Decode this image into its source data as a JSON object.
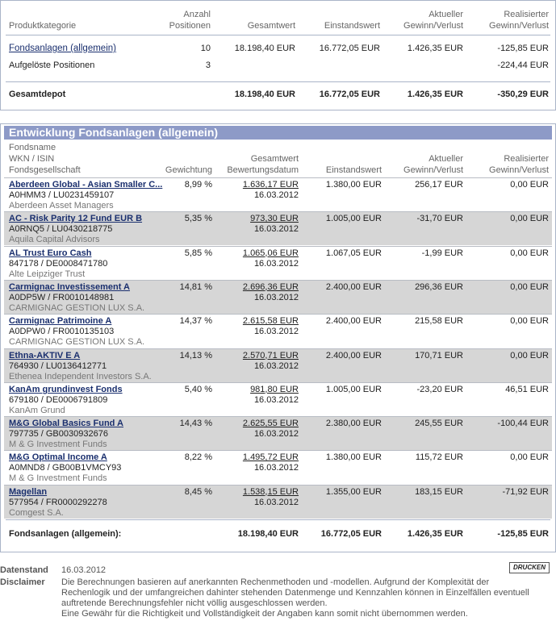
{
  "summary": {
    "headers": {
      "category": "Produktkategorie",
      "positions_1": "Anzahl",
      "positions_2": "Positionen",
      "total": "Gesamtwert",
      "cost": "Einstandswert",
      "current_1": "Aktueller",
      "current_2": "Gewinn/Verlust",
      "realized_1": "Realisierter",
      "realized_2": "Gewinn/Verlust"
    },
    "rows": [
      {
        "category": "Fondsanlagen (allgemein)",
        "positions": "10",
        "total": "18.198,40 EUR",
        "cost": "16.772,05 EUR",
        "current": "1.426,35 EUR",
        "realized": "-125,85 EUR"
      },
      {
        "category": "Aufgelöste Positionen",
        "positions": "3",
        "total": "",
        "cost": "",
        "current": "",
        "realized": "-224,44 EUR"
      }
    ],
    "total_row": {
      "category": "Gesamtdepot",
      "total": "18.198,40 EUR",
      "cost": "16.772,05 EUR",
      "current": "1.426,35 EUR",
      "realized": "-350,29 EUR"
    }
  },
  "detail": {
    "title": "Entwicklung Fondsanlagen (allgemein)",
    "headers": {
      "name_1": "Fondsname",
      "name_2": "WKN / ISIN",
      "name_3": "Fondsgesellschaft",
      "weight": "Gewichtung",
      "total_1": "Gesamtwert",
      "total_2": "Bewertungsdatum",
      "cost": "Einstandswert",
      "current_1": "Aktueller",
      "current_2": "Gewinn/Verlust",
      "realized_1": "Realisierter",
      "realized_2": "Gewinn/Verlust"
    },
    "funds": [
      {
        "name": "Aberdeen Global - Asian Smaller C...",
        "ids": "A0HMM3 / LU0231459107",
        "company": "Aberdeen Asset Managers",
        "weight": "8,99 %",
        "value": "1.636,17 EUR",
        "date": "16.03.2012",
        "cost": "1.380,00 EUR",
        "current": "256,17 EUR",
        "realized": "0,00 EUR"
      },
      {
        "name": "AC - Risk Parity 12 Fund EUR B",
        "ids": "A0RNQ5 / LU0430218775",
        "company": "Aquila Capital Advisors",
        "weight": "5,35 %",
        "value": "973,30 EUR",
        "date": "16.03.2012",
        "cost": "1.005,00 EUR",
        "current": "-31,70 EUR",
        "realized": "0,00 EUR"
      },
      {
        "name": "AL Trust Euro Cash",
        "ids": "847178 / DE0008471780",
        "company": "Alte Leipziger Trust",
        "weight": "5,85 %",
        "value": "1.065,06 EUR",
        "date": "16.03.2012",
        "cost": "1.067,05 EUR",
        "current": "-1,99 EUR",
        "realized": "0,00 EUR"
      },
      {
        "name": "Carmignac Investissement A",
        "ids": "A0DP5W / FR0010148981",
        "company": "CARMIGNAC GESTION LUX S.A.",
        "weight": "14,81 %",
        "value": "2.696,36 EUR",
        "date": "16.03.2012",
        "cost": "2.400,00 EUR",
        "current": "296,36 EUR",
        "realized": "0,00 EUR"
      },
      {
        "name": "Carmignac Patrimoine A",
        "ids": "A0DPW0 / FR0010135103",
        "company": "CARMIGNAC GESTION LUX S.A.",
        "weight": "14,37 %",
        "value": "2.615,58 EUR",
        "date": "16.03.2012",
        "cost": "2.400,00 EUR",
        "current": "215,58 EUR",
        "realized": "0,00 EUR"
      },
      {
        "name": "Ethna-AKTIV E A",
        "ids": "764930 / LU0136412771",
        "company": "Ethenea Independent Investors S.A.",
        "weight": "14,13 %",
        "value": "2.570,71 EUR",
        "date": "16.03.2012",
        "cost": "2.400,00 EUR",
        "current": "170,71 EUR",
        "realized": "0,00 EUR"
      },
      {
        "name": "KanAm grundinvest Fonds",
        "ids": "679180 / DE0006791809",
        "company": "KanAm Grund",
        "weight": "5,40 %",
        "value": "981,80 EUR",
        "date": "16.03.2012",
        "cost": "1.005,00 EUR",
        "current": "-23,20 EUR",
        "realized": "46,51 EUR"
      },
      {
        "name": "M&G Global Basics Fund A",
        "ids": "797735 / GB0030932676",
        "company": "M & G Investment Funds",
        "weight": "14,43 %",
        "value": "2.625,55 EUR",
        "date": "16.03.2012",
        "cost": "2.380,00 EUR",
        "current": "245,55 EUR",
        "realized": "-100,44 EUR"
      },
      {
        "name": "M&G Optimal Income A",
        "ids": "A0MND8 / GB00B1VMCY93",
        "company": "M & G Investment Funds",
        "weight": "8,22 %",
        "value": "1.495,72 EUR",
        "date": "16.03.2012",
        "cost": "1.380,00 EUR",
        "current": "115,72 EUR",
        "realized": "0,00 EUR"
      },
      {
        "name": "Magellan",
        "ids": "577954 / FR0000292278",
        "company": "Comgest S.A.",
        "weight": "8,45 %",
        "value": "1.538,15 EUR",
        "date": "16.03.2012",
        "cost": "1.355,00 EUR",
        "current": "183,15 EUR",
        "realized": "-71,92 EUR"
      }
    ],
    "total_row": {
      "label": "Fondsanlagen (allgemein):",
      "total": "18.198,40 EUR",
      "cost": "16.772,05 EUR",
      "current": "1.426,35 EUR",
      "realized": "-125,85 EUR"
    }
  },
  "footer": {
    "date_label": "Datenstand",
    "date_value": "16.03.2012",
    "print_label": "DRUCKEN",
    "disclaimer_label": "Disclaimer",
    "disclaimer_lines": [
      "Die Berechnungen basieren auf anerkannten Rechenmethoden und -modellen. Aufgrund der Komplexität der",
      "Rechenlogik und der umfangreichen dahinter stehenden Datenmenge und Kennzahlen können in Einzelfällen eventuell",
      "auftretende Berechnungsfehler nicht völlig ausgeschlossen werden.",
      "Eine Gewähr für die Richtigkeit und Vollständigkeit der Angaben kann somit nicht übernommen werden."
    ]
  }
}
